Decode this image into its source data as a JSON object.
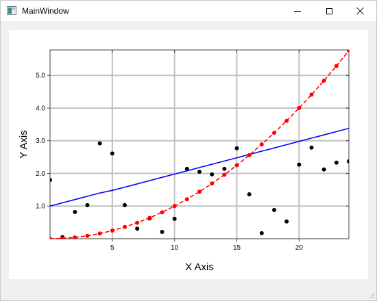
{
  "window": {
    "title": "MainWindow",
    "icons": {
      "app": "app-window-icon",
      "minimize": "minimize-icon",
      "maximize": "maximize-icon",
      "close": "close-icon"
    }
  },
  "chart_data": {
    "type": "scatter",
    "title": "",
    "xlabel": "X Axis",
    "ylabel": "Y Axis",
    "xlim": [
      0,
      24
    ],
    "ylim": [
      0,
      5.78
    ],
    "xticks": [
      5,
      10,
      15,
      20
    ],
    "xtick_labels": [
      "5",
      "10",
      "15",
      "20"
    ],
    "yticks": [
      1,
      2,
      3,
      4,
      5
    ],
    "ytick_labels": [
      "1.0",
      "2.0",
      "3.0",
      "4.0",
      "5.0"
    ],
    "grid": true,
    "legend": "none",
    "series": [
      {
        "kind": "scatter",
        "color": "#000000",
        "x": [
          0,
          1,
          2,
          3,
          4,
          5,
          6,
          7,
          8,
          9,
          10,
          11,
          12,
          13,
          14,
          15,
          16,
          17,
          18,
          19,
          20,
          21,
          22,
          23,
          24
        ],
        "y": [
          1.8,
          0.05,
          0.82,
          1.03,
          2.92,
          2.61,
          1.03,
          0.31,
          0.62,
          0.21,
          0.61,
          2.14,
          2.05,
          1.97,
          2.14,
          2.77,
          1.36,
          0.17,
          0.88,
          0.53,
          2.27,
          2.79,
          2.12,
          2.33,
          2.37
        ]
      },
      {
        "kind": "line",
        "color": "#0000ff",
        "style": "solid",
        "x": [
          0,
          1,
          2,
          3,
          4,
          5,
          6,
          7,
          8,
          9,
          10,
          11,
          12,
          13,
          14,
          15,
          16,
          17,
          18,
          19,
          20,
          21,
          22,
          23,
          24
        ],
        "y": [
          1.0,
          1.1,
          1.2,
          1.3,
          1.4,
          1.48,
          1.58,
          1.68,
          1.78,
          1.88,
          1.98,
          2.08,
          2.18,
          2.28,
          2.38,
          2.48,
          2.58,
          2.68,
          2.78,
          2.88,
          2.98,
          3.08,
          3.18,
          3.28,
          3.38
        ]
      },
      {
        "kind": "line",
        "color": "#ff0000",
        "style": "dashed",
        "markers": true,
        "x": [
          0,
          1,
          2,
          3,
          4,
          5,
          6,
          7,
          8,
          9,
          10,
          11,
          12,
          13,
          14,
          15,
          16,
          17,
          18,
          19,
          20,
          21,
          22,
          23,
          24
        ],
        "y": [
          0.0,
          0.01,
          0.04,
          0.09,
          0.16,
          0.25,
          0.36,
          0.49,
          0.64,
          0.81,
          1.0,
          1.21,
          1.44,
          1.69,
          1.96,
          2.25,
          2.56,
          2.89,
          3.24,
          3.61,
          4.0,
          4.41,
          4.84,
          5.29,
          5.76
        ]
      }
    ]
  }
}
